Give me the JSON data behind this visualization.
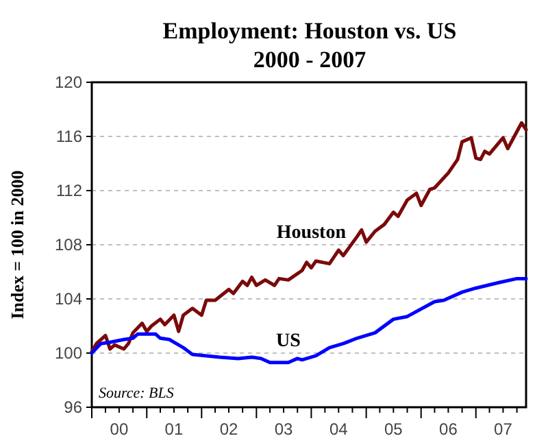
{
  "chart_data": {
    "type": "line",
    "title": "Employment: Houston vs. US",
    "subtitle": "2000 - 2007",
    "ylabel": "Index = 100 in 2000",
    "annotations": [
      "Source: BLS"
    ],
    "xlim": [
      "2000-01",
      "2007-12"
    ],
    "xticks": [
      {
        "value": "2000-01",
        "label": null
      },
      {
        "value": "2000-04",
        "label": null
      },
      {
        "value": "2000-07",
        "label": "00"
      },
      {
        "value": "2000-10",
        "label": null
      },
      {
        "value": "2001-01",
        "label": null
      },
      {
        "value": "2001-04",
        "label": null
      },
      {
        "value": "2001-07",
        "label": "01"
      },
      {
        "value": "2001-10",
        "label": null
      },
      {
        "value": "2002-01",
        "label": null
      },
      {
        "value": "2002-04",
        "label": null
      },
      {
        "value": "2002-07",
        "label": "02"
      },
      {
        "value": "2002-10",
        "label": null
      },
      {
        "value": "2003-01",
        "label": null
      },
      {
        "value": "2003-04",
        "label": null
      },
      {
        "value": "2003-07",
        "label": "03"
      },
      {
        "value": "2003-10",
        "label": null
      },
      {
        "value": "2004-01",
        "label": null
      },
      {
        "value": "2004-04",
        "label": null
      },
      {
        "value": "2004-07",
        "label": "04"
      },
      {
        "value": "2004-10",
        "label": null
      },
      {
        "value": "2005-01",
        "label": null
      },
      {
        "value": "2005-04",
        "label": null
      },
      {
        "value": "2005-07",
        "label": "05"
      },
      {
        "value": "2005-10",
        "label": null
      },
      {
        "value": "2006-01",
        "label": null
      },
      {
        "value": "2006-04",
        "label": null
      },
      {
        "value": "2006-07",
        "label": "06"
      },
      {
        "value": "2006-10",
        "label": null
      },
      {
        "value": "2007-01",
        "label": null
      },
      {
        "value": "2007-04",
        "label": null
      },
      {
        "value": "2007-07",
        "label": "07"
      },
      {
        "value": "2007-10",
        "label": null
      }
    ],
    "ylim": [
      96,
      120
    ],
    "yticks": [
      96,
      100,
      104,
      108,
      112,
      116,
      120
    ],
    "grid": "y",
    "legend": false,
    "marker": "none",
    "line_style": "solid",
    "series": [
      {
        "name": "Houston",
        "color": "#7a0a0a",
        "x": [
          "2000-01",
          "2000-02",
          "2000-04",
          "2000-05",
          "2000-06",
          "2000-08",
          "2000-09",
          "2000-10",
          "2000-12",
          "2001-01",
          "2001-02",
          "2001-04",
          "2001-05",
          "2001-07",
          "2001-08",
          "2001-09",
          "2001-11",
          "2002-01",
          "2002-02",
          "2002-04",
          "2002-07",
          "2002-08",
          "2002-10",
          "2002-11",
          "2002-12",
          "2003-01",
          "2003-03",
          "2003-05",
          "2003-06",
          "2003-08",
          "2003-11",
          "2003-12",
          "2004-01",
          "2004-02",
          "2004-05",
          "2004-07",
          "2004-08",
          "2004-11",
          "2004-12",
          "2005-01",
          "2005-03",
          "2005-05",
          "2005-07",
          "2005-08",
          "2005-10",
          "2005-12",
          "2006-01",
          "2006-03",
          "2006-04",
          "2006-07",
          "2006-09",
          "2006-10",
          "2006-12",
          "2007-01",
          "2007-02",
          "2007-03",
          "2007-04",
          "2007-07",
          "2007-08",
          "2007-11",
          "2007-12"
        ],
        "values": [
          100.1,
          100.7,
          101.3,
          100.3,
          100.6,
          100.3,
          100.7,
          101.5,
          102.2,
          101.6,
          102.0,
          102.5,
          102.1,
          102.8,
          101.6,
          102.8,
          103.3,
          102.8,
          103.9,
          103.9,
          104.7,
          104.4,
          105.3,
          105.0,
          105.6,
          105.0,
          105.4,
          105.0,
          105.5,
          105.4,
          106.1,
          106.7,
          106.3,
          106.8,
          106.6,
          107.6,
          107.2,
          108.6,
          109.1,
          108.2,
          109.0,
          109.5,
          110.4,
          110.1,
          111.3,
          111.8,
          110.9,
          112.1,
          112.2,
          113.3,
          114.3,
          115.6,
          115.9,
          114.4,
          114.3,
          114.9,
          114.7,
          115.9,
          115.1,
          117.0,
          116.5
        ]
      },
      {
        "name": "US",
        "color": "#0000ff",
        "x": [
          "2000-01",
          "2000-03",
          "2000-05",
          "2000-08",
          "2000-10",
          "2000-11",
          "2001-03",
          "2001-04",
          "2001-06",
          "2001-09",
          "2001-11",
          "2002-02",
          "2002-05",
          "2002-09",
          "2002-12",
          "2003-02",
          "2003-04",
          "2003-08",
          "2003-10",
          "2003-11",
          "2004-02",
          "2004-05",
          "2004-08",
          "2004-11",
          "2005-03",
          "2005-07",
          "2005-10",
          "2006-04",
          "2006-06",
          "2006-10",
          "2007-01",
          "2007-06",
          "2007-10",
          "2007-12"
        ],
        "values": [
          100.0,
          100.7,
          100.8,
          101.0,
          101.1,
          101.4,
          101.4,
          101.1,
          101.0,
          100.4,
          99.9,
          99.8,
          99.7,
          99.6,
          99.7,
          99.6,
          99.3,
          99.3,
          99.6,
          99.5,
          99.8,
          100.4,
          100.7,
          101.1,
          101.5,
          102.5,
          102.7,
          103.8,
          103.9,
          104.5,
          104.8,
          105.2,
          105.5,
          105.5
        ]
      }
    ]
  }
}
